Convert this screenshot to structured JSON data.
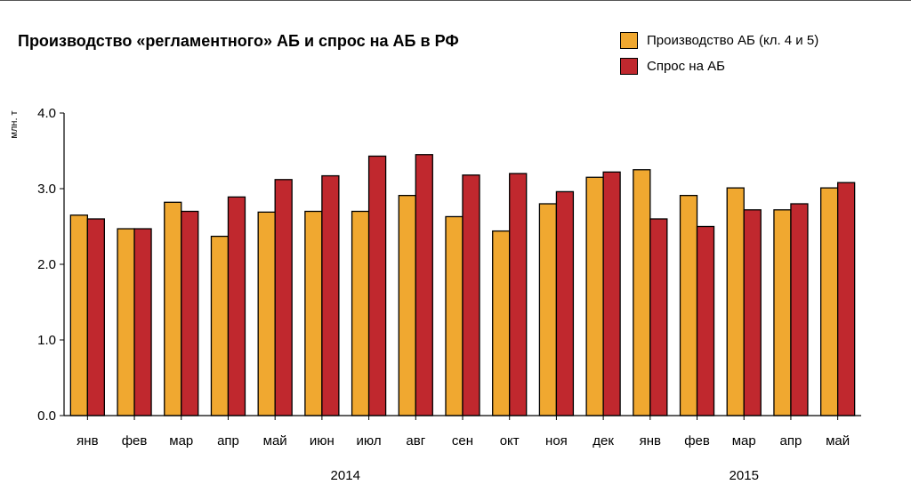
{
  "chart_data": {
    "type": "bar",
    "title": "Производство «регламентного» АБ и спрос на АБ в РФ",
    "ylabel": "млн. т",
    "xlabel": "",
    "ylim": [
      0,
      4
    ],
    "yticks": [
      "0.0",
      "1.0",
      "2.0",
      "3.0",
      "4.0"
    ],
    "categories": [
      "янв",
      "фев",
      "мар",
      "апр",
      "май",
      "июн",
      "июл",
      "авг",
      "сен",
      "окт",
      "ноя",
      "дек",
      "янв",
      "фев",
      "мар",
      "апр",
      "май"
    ],
    "year_groups": [
      {
        "label": "2014",
        "start": 0,
        "end": 11
      },
      {
        "label": "2015",
        "start": 12,
        "end": 16
      }
    ],
    "grid": false,
    "legend_position": "top-right",
    "series": [
      {
        "name": "Производство АБ (кл. 4 и 5)",
        "color": "#F0A830",
        "values": [
          2.65,
          2.47,
          2.82,
          2.37,
          2.69,
          2.7,
          2.7,
          2.91,
          2.63,
          2.44,
          2.8,
          3.15,
          3.25,
          2.91,
          3.01,
          2.72,
          3.01
        ]
      },
      {
        "name": "Спрос на АБ",
        "color": "#C0282E",
        "values": [
          2.6,
          2.47,
          2.7,
          2.89,
          3.12,
          3.17,
          3.43,
          3.45,
          3.18,
          3.2,
          2.96,
          3.22,
          2.6,
          2.5,
          2.72,
          2.8,
          3.08
        ]
      }
    ]
  }
}
